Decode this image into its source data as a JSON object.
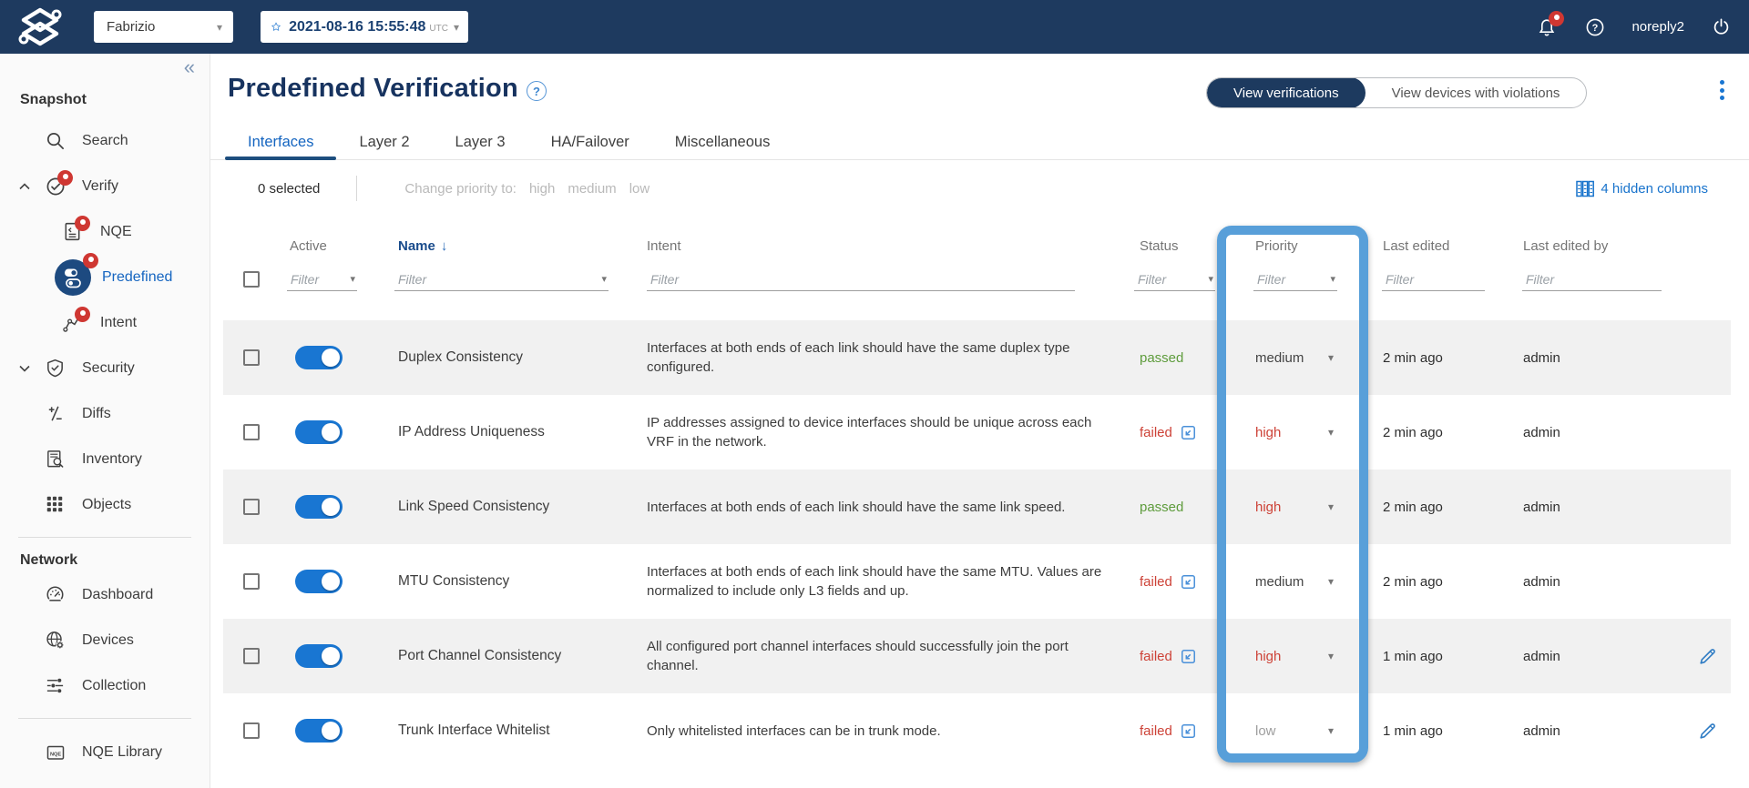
{
  "topbar": {
    "network_selector": {
      "value": "Fabrizio"
    },
    "snapshot_selector": {
      "date": "2021-08-16  15:55:48",
      "timezone": "UTC"
    },
    "username": "noreply2",
    "icons": [
      "forward-networks-logo",
      "star-icon",
      "bell-icon",
      "help-icon",
      "power-icon"
    ]
  },
  "sidebar": {
    "collapse_icon": "«",
    "sections": [
      {
        "heading": "Snapshot",
        "items": [
          {
            "label": "Search",
            "icon": "search-icon",
            "indent": 0
          },
          {
            "label": "Verify",
            "icon": "verify-check-icon",
            "indent": 0,
            "chevron": "up",
            "badge": true
          },
          {
            "label": "NQE",
            "icon": "nqe-doc-icon",
            "indent": 1,
            "badge": true
          },
          {
            "label": "Predefined",
            "icon": "predefined-toggle-icon",
            "indent": 1,
            "badge": true,
            "selected": true,
            "big": true
          },
          {
            "label": "Intent",
            "icon": "intent-path-icon",
            "indent": 1,
            "badge": true
          },
          {
            "label": "Security",
            "icon": "security-shield-icon",
            "indent": 0,
            "chevron": "down"
          },
          {
            "label": "Diffs",
            "icon": "diffs-plus-minus-icon",
            "indent": 0
          },
          {
            "label": "Inventory",
            "icon": "inventory-search-icon",
            "indent": 0
          },
          {
            "label": "Objects",
            "icon": "objects-grid-icon",
            "indent": 0
          }
        ]
      },
      {
        "heading": "Network",
        "items": [
          {
            "label": "Dashboard",
            "icon": "dashboard-gauge-icon",
            "indent": 0
          },
          {
            "label": "Devices",
            "icon": "devices-globe-icon",
            "indent": 0
          },
          {
            "label": "Collection",
            "icon": "collection-sliders-icon",
            "indent": 0
          }
        ]
      },
      {
        "heading": null,
        "items": [
          {
            "label": "NQE Library",
            "icon": "nqe-library-folder-icon",
            "indent": 0
          }
        ]
      }
    ]
  },
  "page": {
    "title": "Predefined Verification",
    "help_icon": "?",
    "view_toggle": {
      "options": [
        "View verifications",
        "View devices with violations"
      ],
      "selected": 0
    },
    "tabs": [
      "Interfaces",
      "Layer 2",
      "Layer 3",
      "HA/Failover",
      "Miscellaneous"
    ],
    "active_tab": 0
  },
  "toolbar": {
    "selected_count": "0 selected",
    "bulk_label": "Change priority to:",
    "bulk_options": [
      "high",
      "medium",
      "low"
    ],
    "hidden_columns": "4 hidden columns"
  },
  "table": {
    "columns": [
      "Active",
      "Name",
      "Intent",
      "Status",
      "Priority",
      "Last edited",
      "Last edited by"
    ],
    "sorted_column": "Name",
    "sort_direction": "down",
    "filter_placeholder": "Filter",
    "filters": [
      {
        "column": "Active",
        "type": "select"
      },
      {
        "column": "Name",
        "type": "select"
      },
      {
        "column": "Intent",
        "type": "text"
      },
      {
        "column": "Status",
        "type": "select"
      },
      {
        "column": "Priority",
        "type": "select"
      },
      {
        "column": "Last edited",
        "type": "text"
      },
      {
        "column": "Last edited by",
        "type": "text"
      }
    ],
    "highlighted_column": "Priority",
    "rows": [
      {
        "active": true,
        "name": "Duplex Consistency",
        "intent": "Interfaces at both ends of each link should have the same duplex type configured.",
        "status": "passed",
        "priority": "medium",
        "last_edited": "2 min ago",
        "last_edited_by": "admin",
        "editable": false
      },
      {
        "active": true,
        "name": "IP Address Uniqueness",
        "intent": "IP addresses assigned to device interfaces should be unique across each VRF in the network.",
        "status": "failed",
        "priority": "high",
        "last_edited": "2 min ago",
        "last_edited_by": "admin",
        "editable": false
      },
      {
        "active": true,
        "name": "Link Speed Consistency",
        "intent": "Interfaces at both ends of each link should have the same link speed.",
        "status": "passed",
        "priority": "high",
        "last_edited": "2 min ago",
        "last_edited_by": "admin",
        "editable": false
      },
      {
        "active": true,
        "name": "MTU Consistency",
        "intent": "Interfaces at both ends of each link should have the same MTU. Values are normalized to include only L3 fields and up.",
        "status": "failed",
        "priority": "medium",
        "last_edited": "2 min ago",
        "last_edited_by": "admin",
        "editable": false
      },
      {
        "active": true,
        "name": "Port Channel Consistency",
        "intent": "All configured port channel interfaces should successfully join the port channel.",
        "status": "failed",
        "priority": "high",
        "last_edited": "1 min ago",
        "last_edited_by": "admin",
        "editable": true
      },
      {
        "active": true,
        "name": "Trunk Interface Whitelist",
        "intent": "Only whitelisted interfaces can be in trunk mode.",
        "status": "failed",
        "priority": "low",
        "last_edited": "1 min ago",
        "last_edited_by": "admin",
        "editable": true
      }
    ]
  },
  "colors": {
    "topbar_bg": "#1e3a5f",
    "accent_blue": "#1976d2",
    "link_blue": "#1873cc",
    "passed_green": "#5e9c3c",
    "failed_red": "#cd4237",
    "priority_high": "#cd4237",
    "priority_medium": "#444444",
    "priority_low": "#9e9e9e",
    "column_highlight": "#589fd9",
    "badge_red": "#cf3732",
    "selected_pill": "#1d3a5f"
  }
}
